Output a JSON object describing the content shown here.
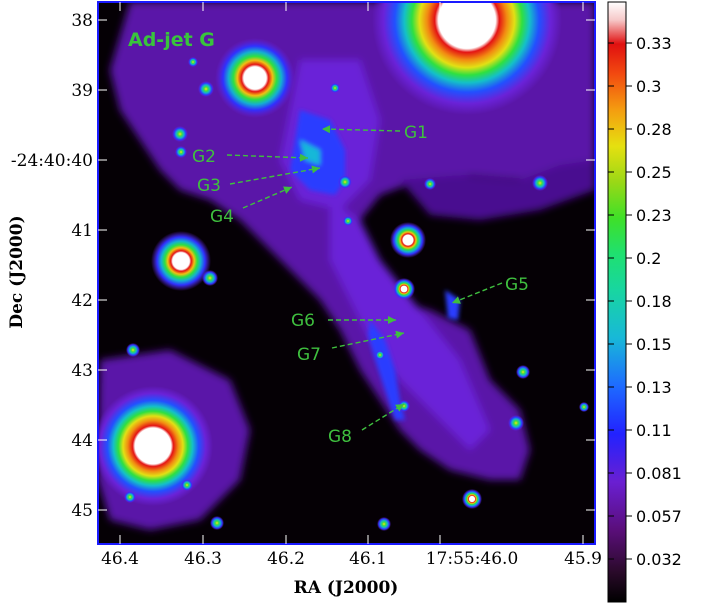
{
  "panel": {
    "title": "Ad-jet G",
    "title_color": "#39c43c",
    "annotation_color": "#3fbf3f"
  },
  "axes": {
    "xlabel": "RA (J2000)",
    "ylabel": "Dec (J2000)",
    "xticks": [
      "46.4",
      "46.3",
      "46.2",
      "46.1",
      "17:55:46.0",
      "45.9"
    ],
    "yticks": [
      "38",
      "39",
      "-24:40:40",
      "41",
      "42",
      "43",
      "44",
      "45"
    ],
    "frame_color": "#1a1aff"
  },
  "colorbar": {
    "ticks": [
      "0.33",
      "0.3",
      "0.28",
      "0.25",
      "0.23",
      "0.2",
      "0.18",
      "0.15",
      "0.13",
      "0.11",
      "0.081",
      "0.057",
      "0.032"
    ]
  },
  "annotations": [
    {
      "label": "G1"
    },
    {
      "label": "G2"
    },
    {
      "label": "G3"
    },
    {
      "label": "G4"
    },
    {
      "label": "G5"
    },
    {
      "label": "G6"
    },
    {
      "label": "G7"
    },
    {
      "label": "G8"
    }
  ]
}
